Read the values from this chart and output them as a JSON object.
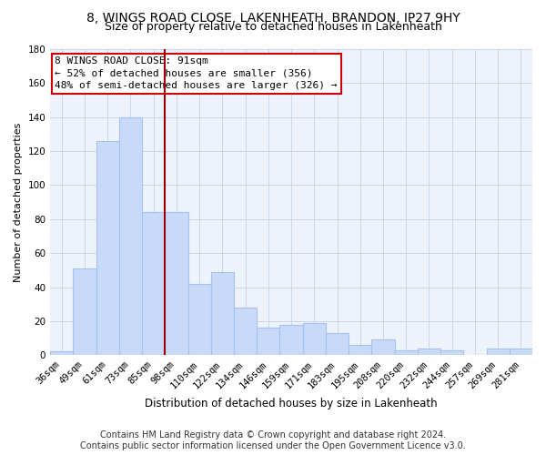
{
  "title1": "8, WINGS ROAD CLOSE, LAKENHEATH, BRANDON, IP27 9HY",
  "title2": "Size of property relative to detached houses in Lakenheath",
  "xlabel": "Distribution of detached houses by size in Lakenheath",
  "ylabel": "Number of detached properties",
  "categories": [
    "36sqm",
    "49sqm",
    "61sqm",
    "73sqm",
    "85sqm",
    "98sqm",
    "110sqm",
    "122sqm",
    "134sqm",
    "146sqm",
    "159sqm",
    "171sqm",
    "183sqm",
    "195sqm",
    "208sqm",
    "220sqm",
    "232sqm",
    "244sqm",
    "257sqm",
    "269sqm",
    "281sqm"
  ],
  "values": [
    2,
    51,
    126,
    140,
    84,
    84,
    42,
    49,
    28,
    16,
    18,
    19,
    13,
    6,
    9,
    3,
    4,
    3,
    0,
    4,
    4
  ],
  "bar_color": "#c9daf8",
  "bar_edge_color": "#a4c2f4",
  "vline_color": "#990000",
  "annotation_text": "8 WINGS ROAD CLOSE: 91sqm\n← 52% of detached houses are smaller (356)\n48% of semi-detached houses are larger (326) →",
  "annotation_box_color": "white",
  "annotation_box_edge_color": "#cc0000",
  "ylim": [
    0,
    180
  ],
  "grid_color": "#c8d8e8",
  "background_color": "#eef2fb",
  "footer": "Contains HM Land Registry data © Crown copyright and database right 2024.\nContains public sector information licensed under the Open Government Licence v3.0.",
  "title1_fontsize": 10,
  "title2_fontsize": 9,
  "axis_label_fontsize": 8,
  "tick_fontsize": 7.5,
  "footer_fontsize": 7,
  "annot_fontsize": 8
}
